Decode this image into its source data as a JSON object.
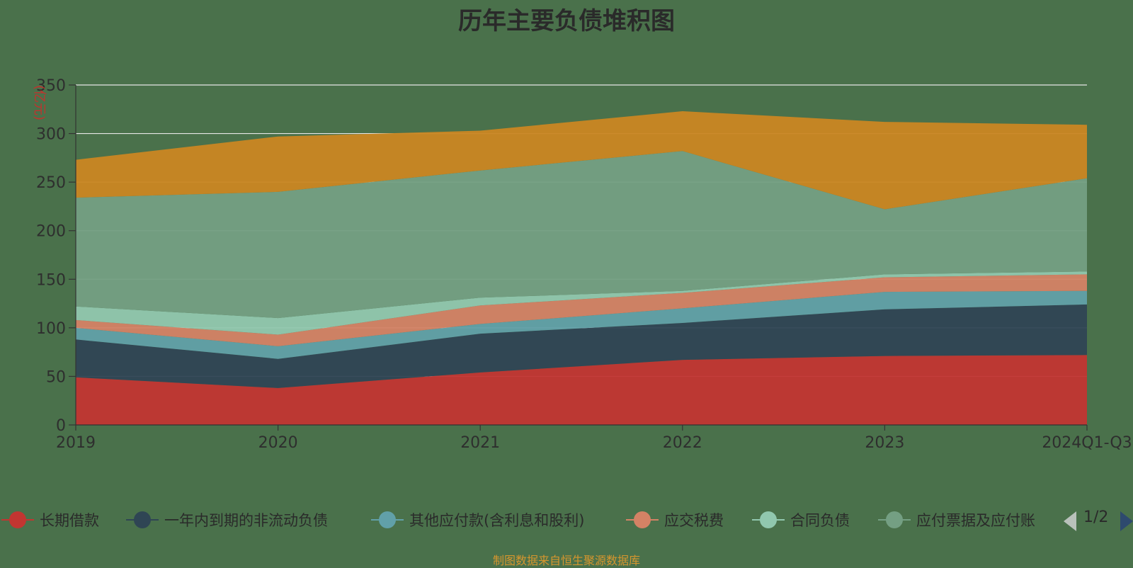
{
  "chart_data": {
    "type": "area",
    "stacked": true,
    "title": "历年主要负债堆积图",
    "unit_label": "(亿元)",
    "categories": [
      "2019",
      "2020",
      "2021",
      "2022",
      "2023",
      "2024Q1-Q3"
    ],
    "ylim": [
      0,
      350
    ],
    "yticks": [
      0,
      50,
      100,
      150,
      200,
      250,
      300,
      350
    ],
    "grid": true,
    "legend_position": "bottom",
    "series": [
      {
        "name": "长期借款",
        "color": "#c23531",
        "values": [
          49,
          38,
          54,
          67,
          71,
          72
        ]
      },
      {
        "name": "一年内到期的非流动负债",
        "color": "#2f4554",
        "values": [
          39,
          30,
          40,
          38,
          48,
          52
        ]
      },
      {
        "name": "其他应付款(含利息和股利)",
        "color": "#61a0a8",
        "values": [
          12,
          13,
          10,
          15,
          18,
          14
        ]
      },
      {
        "name": "应交税费",
        "color": "#d48265",
        "values": [
          8,
          12,
          19,
          16,
          15,
          17
        ]
      },
      {
        "name": "合同负债",
        "color": "#91c7ae",
        "values": [
          14,
          17,
          8,
          2,
          3,
          3
        ]
      },
      {
        "name": "应付票据及应付账款",
        "color": "#749f83",
        "values": [
          112,
          130,
          131,
          144,
          67,
          96
        ]
      },
      {
        "name": "",
        "color": "#ca8622",
        "values": [
          39,
          57,
          41,
          41,
          90,
          55
        ]
      }
    ]
  },
  "legend": {
    "items": [
      {
        "label": "长期借款",
        "color": "#c23531"
      },
      {
        "label": "一年内到期的非流动负债",
        "color": "#2f4554"
      },
      {
        "label": "其他应付款(含利息和股利)",
        "color": "#61a0a8"
      },
      {
        "label": "应交税费",
        "color": "#d48265"
      },
      {
        "label": "合同负债",
        "color": "#91c7ae"
      },
      {
        "label": "应付票据及应付账",
        "color": "#749f83"
      }
    ],
    "page_text": "1/2"
  },
  "source_text": "制图数据来自恒生聚源数据库"
}
